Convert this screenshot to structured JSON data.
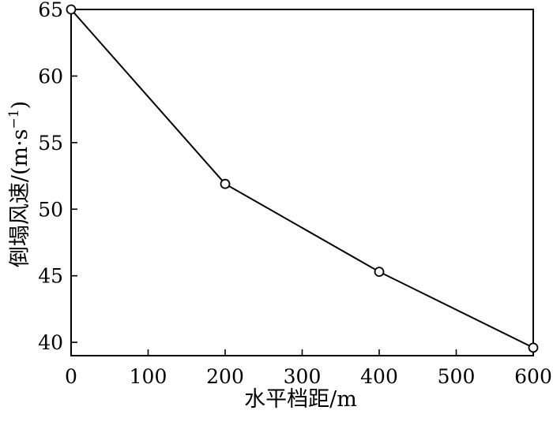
{
  "chart_data": {
    "type": "line",
    "title": "",
    "xlabel": "水平档距/m",
    "ylabel": "倒塌风速/(m·s",
    "ylabel_sup": "−1",
    "ylabel_close": ")",
    "x": [
      0,
      200,
      400,
      600
    ],
    "series": [
      {
        "values": [
          65.0,
          51.9,
          45.3,
          39.6
        ],
        "marker": "open-circle",
        "color": "#000000"
      }
    ],
    "xlim": [
      0,
      600
    ],
    "ylim": [
      39,
      65
    ],
    "xticks": [
      0,
      100,
      200,
      300,
      400,
      500,
      600
    ],
    "yticks": [
      40,
      45,
      50,
      55,
      60,
      65
    ],
    "grid": false,
    "legend": "none"
  }
}
